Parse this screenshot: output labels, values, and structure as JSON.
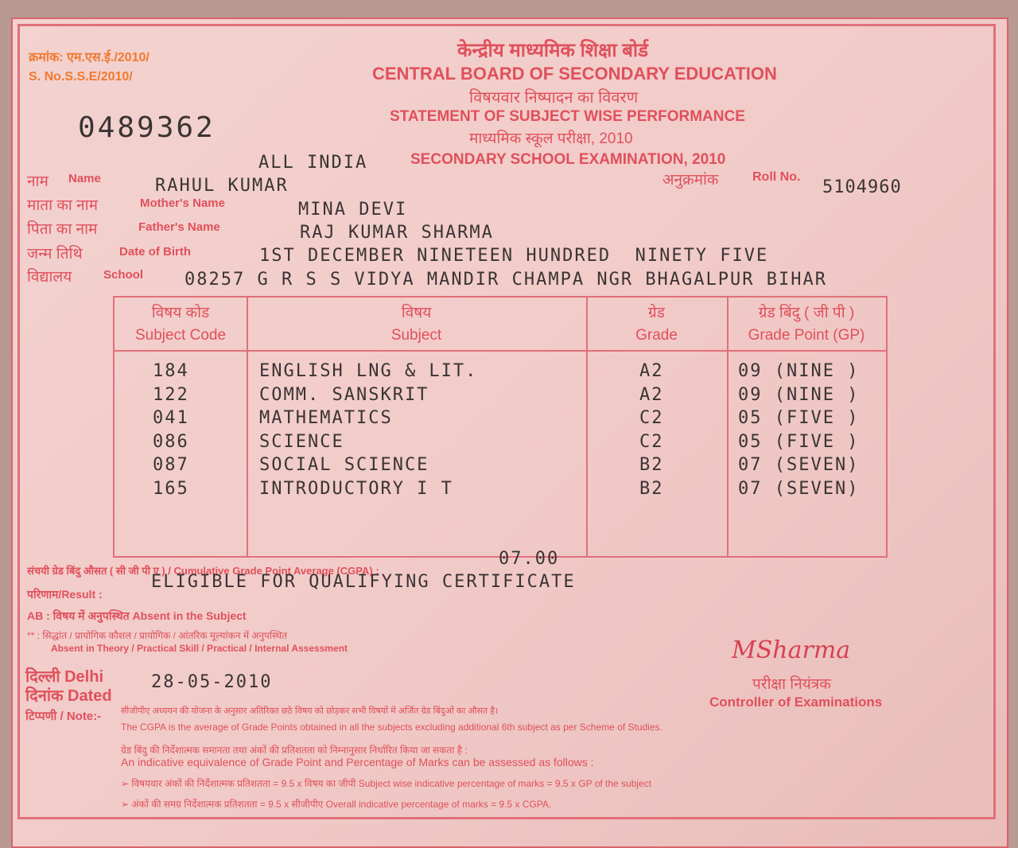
{
  "header": {
    "serial_hindi": "क्रमांक: एम.एस.ई./2010/",
    "serial_en": "S. No.S.S.E/2010/",
    "serial_number": "0489362",
    "board_hindi": "केन्द्रीय माध्यमिक शिक्षा बोर्ड",
    "board_en": "CENTRAL BOARD OF SECONDARY EDUCATION",
    "statement_hindi": "विषयवार निष्पादन का विवरण",
    "statement_en": "STATEMENT OF SUBJECT WISE PERFORMANCE",
    "exam_hindi": "माध्यमिक स्कूल परीक्षा, 2010",
    "exam_en": "SECONDARY SCHOOL EXAMINATION, 2010",
    "region": "ALL INDIA"
  },
  "student": {
    "name_label_hi": "नाम",
    "name_label": "Name",
    "name": "RAHUL KUMAR",
    "roll_label_hi": "अनुक्रमांक",
    "roll_label": "Roll No.",
    "roll": "5104960",
    "mother_label_hi": "माता का नाम",
    "mother_label": "Mother's Name",
    "mother": "MINA DEVI",
    "father_label_hi": "पिता का नाम",
    "father_label": "Father's Name",
    "father": "RAJ KUMAR SHARMA",
    "dob_label_hi": "जन्म तिथि",
    "dob_label": "Date of Birth",
    "dob": "1ST DECEMBER NINETEEN HUNDRED  NINETY FIVE",
    "school_label_hi": "विद्यालय",
    "school_label": "School",
    "school": "08257 G R S S VIDYA MANDIR CHAMPA NGR BHAGALPUR BIHAR"
  },
  "table": {
    "headers": [
      {
        "hi": "विषय कोड",
        "en": "Subject Code"
      },
      {
        "hi": "विषय",
        "en": "Subject"
      },
      {
        "hi": "ग्रेड",
        "en": "Grade"
      },
      {
        "hi": "ग्रेड बिंदु ( जी पी )",
        "en": "Grade Point (GP)"
      }
    ],
    "rows": [
      {
        "code": "184",
        "subject": "ENGLISH LNG & LIT.",
        "grade": "A2",
        "gp": "09 (NINE )"
      },
      {
        "code": "122",
        "subject": "COMM. SANSKRIT",
        "grade": "A2",
        "gp": "09 (NINE )"
      },
      {
        "code": "041",
        "subject": "MATHEMATICS",
        "grade": "C2",
        "gp": "05 (FIVE )"
      },
      {
        "code": "086",
        "subject": "SCIENCE",
        "grade": "C2",
        "gp": "05 (FIVE )"
      },
      {
        "code": "087",
        "subject": "SOCIAL SCIENCE",
        "grade": "B2",
        "gp": "07 (SEVEN)"
      },
      {
        "code": "165",
        "subject": "INTRODUCTORY I T",
        "grade": "B2",
        "gp": "07 (SEVEN)"
      }
    ]
  },
  "result": {
    "cgpa_label": "संचयी ग्रेड बिंदु औसत ( सी जी पी ए ) / Cumulative Grade Point Average (CGPA) :",
    "cgpa": "07.00",
    "result_label": "परिणाम/Result :",
    "result": "ELIGIBLE FOR QUALIFYING CERTIFICATE",
    "ab_note": "AB : विषय में अनुपस्थित Absent in the Subject",
    "star_note_hi": "** : सिद्धांत / प्रायोगिक कौशल / प्रायोगिक / आंतरिक मूल्यांकन में अनुपस्थित",
    "star_note_en": "Absent in Theory / Practical Skill / Practical / Internal Assessment"
  },
  "footer": {
    "place_label": "दिल्ली Delhi",
    "dated_label": "दिनांक Dated",
    "date": "28-05-2010",
    "signature": "MSharma",
    "controller_hi": "परीक्षा नियंत्रक",
    "controller_en": "Controller of Examinations",
    "note_label": "टिप्पणी / Note:-",
    "notes": [
      "सीजीपीए अध्ययन की योजना के अनुसार अतिरिक्त छठे विषय को छोड़कर सभी विषयों में अर्जित ग्रेड बिंदुओं का औसत है।",
      "The CGPA is the average of Grade Points obtained in all the subjects excluding additional 6th subject as per Scheme of Studies.",
      "ग्रेड बिंदु की निर्देशात्मक समानता तथा अंकों की प्रतिशतता को निम्नानुसार निर्धारित किया जा सकता है :",
      "An indicative equivalence of Grade Point and Percentage of Marks can be assessed as follows :",
      "➢ विषयवार अंकों की निर्देशात्मक प्रतिशतता = 9.5 x विषय का जीपी  Subject wise indicative percentage of marks = 9.5 x GP of the subject",
      "➢ अंकों की समग्र निर्देशात्मक प्रतिशतता = 9.5 x सीजीपीए  Overall indicative percentage of marks = 9.5 x CGPA."
    ]
  }
}
